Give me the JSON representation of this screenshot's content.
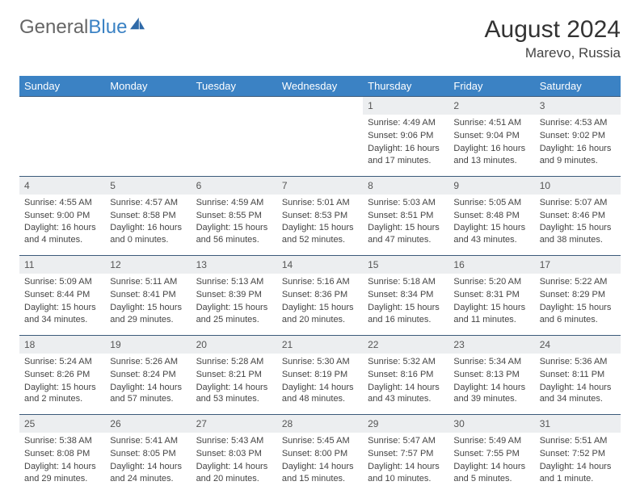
{
  "brand": {
    "part1": "General",
    "part2": "Blue"
  },
  "header": {
    "title": "August 2024",
    "location": "Marevo, Russia"
  },
  "weekdays": [
    "Sunday",
    "Monday",
    "Tuesday",
    "Wednesday",
    "Thursday",
    "Friday",
    "Saturday"
  ],
  "colors": {
    "header_bg": "#3b82c4",
    "header_text": "#ffffff",
    "daynum_bg": "#eceef0",
    "rule": "#3b5a7a"
  },
  "weeks": [
    [
      {
        "n": "",
        "empty": true
      },
      {
        "n": "",
        "empty": true
      },
      {
        "n": "",
        "empty": true
      },
      {
        "n": "",
        "empty": true
      },
      {
        "n": "1",
        "sr": "4:49 AM",
        "ss": "9:06 PM",
        "dl": "16 hours and 17 minutes."
      },
      {
        "n": "2",
        "sr": "4:51 AM",
        "ss": "9:04 PM",
        "dl": "16 hours and 13 minutes."
      },
      {
        "n": "3",
        "sr": "4:53 AM",
        "ss": "9:02 PM",
        "dl": "16 hours and 9 minutes."
      }
    ],
    [
      {
        "n": "4",
        "sr": "4:55 AM",
        "ss": "9:00 PM",
        "dl": "16 hours and 4 minutes."
      },
      {
        "n": "5",
        "sr": "4:57 AM",
        "ss": "8:58 PM",
        "dl": "16 hours and 0 minutes."
      },
      {
        "n": "6",
        "sr": "4:59 AM",
        "ss": "8:55 PM",
        "dl": "15 hours and 56 minutes."
      },
      {
        "n": "7",
        "sr": "5:01 AM",
        "ss": "8:53 PM",
        "dl": "15 hours and 52 minutes."
      },
      {
        "n": "8",
        "sr": "5:03 AM",
        "ss": "8:51 PM",
        "dl": "15 hours and 47 minutes."
      },
      {
        "n": "9",
        "sr": "5:05 AM",
        "ss": "8:48 PM",
        "dl": "15 hours and 43 minutes."
      },
      {
        "n": "10",
        "sr": "5:07 AM",
        "ss": "8:46 PM",
        "dl": "15 hours and 38 minutes."
      }
    ],
    [
      {
        "n": "11",
        "sr": "5:09 AM",
        "ss": "8:44 PM",
        "dl": "15 hours and 34 minutes."
      },
      {
        "n": "12",
        "sr": "5:11 AM",
        "ss": "8:41 PM",
        "dl": "15 hours and 29 minutes."
      },
      {
        "n": "13",
        "sr": "5:13 AM",
        "ss": "8:39 PM",
        "dl": "15 hours and 25 minutes."
      },
      {
        "n": "14",
        "sr": "5:16 AM",
        "ss": "8:36 PM",
        "dl": "15 hours and 20 minutes."
      },
      {
        "n": "15",
        "sr": "5:18 AM",
        "ss": "8:34 PM",
        "dl": "15 hours and 16 minutes."
      },
      {
        "n": "16",
        "sr": "5:20 AM",
        "ss": "8:31 PM",
        "dl": "15 hours and 11 minutes."
      },
      {
        "n": "17",
        "sr": "5:22 AM",
        "ss": "8:29 PM",
        "dl": "15 hours and 6 minutes."
      }
    ],
    [
      {
        "n": "18",
        "sr": "5:24 AM",
        "ss": "8:26 PM",
        "dl": "15 hours and 2 minutes."
      },
      {
        "n": "19",
        "sr": "5:26 AM",
        "ss": "8:24 PM",
        "dl": "14 hours and 57 minutes."
      },
      {
        "n": "20",
        "sr": "5:28 AM",
        "ss": "8:21 PM",
        "dl": "14 hours and 53 minutes."
      },
      {
        "n": "21",
        "sr": "5:30 AM",
        "ss": "8:19 PM",
        "dl": "14 hours and 48 minutes."
      },
      {
        "n": "22",
        "sr": "5:32 AM",
        "ss": "8:16 PM",
        "dl": "14 hours and 43 minutes."
      },
      {
        "n": "23",
        "sr": "5:34 AM",
        "ss": "8:13 PM",
        "dl": "14 hours and 39 minutes."
      },
      {
        "n": "24",
        "sr": "5:36 AM",
        "ss": "8:11 PM",
        "dl": "14 hours and 34 minutes."
      }
    ],
    [
      {
        "n": "25",
        "sr": "5:38 AM",
        "ss": "8:08 PM",
        "dl": "14 hours and 29 minutes."
      },
      {
        "n": "26",
        "sr": "5:41 AM",
        "ss": "8:05 PM",
        "dl": "14 hours and 24 minutes."
      },
      {
        "n": "27",
        "sr": "5:43 AM",
        "ss": "8:03 PM",
        "dl": "14 hours and 20 minutes."
      },
      {
        "n": "28",
        "sr": "5:45 AM",
        "ss": "8:00 PM",
        "dl": "14 hours and 15 minutes."
      },
      {
        "n": "29",
        "sr": "5:47 AM",
        "ss": "7:57 PM",
        "dl": "14 hours and 10 minutes."
      },
      {
        "n": "30",
        "sr": "5:49 AM",
        "ss": "7:55 PM",
        "dl": "14 hours and 5 minutes."
      },
      {
        "n": "31",
        "sr": "5:51 AM",
        "ss": "7:52 PM",
        "dl": "14 hours and 1 minute."
      }
    ]
  ],
  "labels": {
    "sunrise": "Sunrise:",
    "sunset": "Sunset:",
    "daylight": "Daylight:"
  }
}
